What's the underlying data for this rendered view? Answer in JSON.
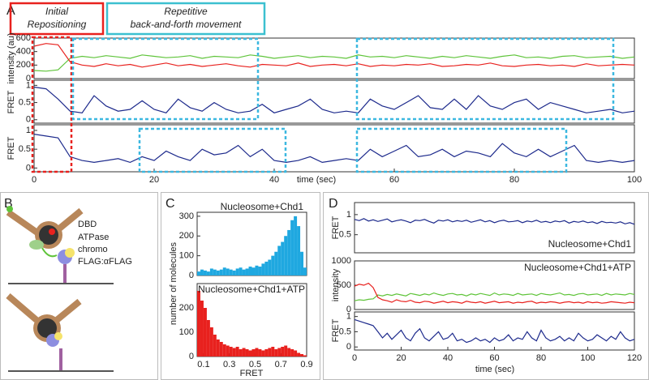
{
  "panel_labels": [
    "A",
    "B",
    "C",
    "D"
  ],
  "annotations": {
    "initial": [
      "Initial",
      "Repositioning"
    ],
    "repetitive": [
      "Repetitive",
      "back-and-forth movement"
    ]
  },
  "diagram_labels": [
    "DBD",
    "ATPase",
    "chromo",
    "FLAG:αFLAG"
  ],
  "shared_ylabel": "number of molecules",
  "chart_data": [
    {
      "type": "line",
      "ylabel": "intensity (au)",
      "xlim": [
        0,
        100
      ],
      "ylim": [
        0,
        600
      ],
      "yticks": [
        0,
        200,
        400,
        600
      ],
      "x": [
        0,
        2,
        4,
        6,
        8,
        10,
        12,
        14,
        16,
        18,
        20,
        22,
        24,
        26,
        28,
        30,
        32,
        34,
        36,
        38,
        40,
        42,
        44,
        46,
        48,
        50,
        52,
        54,
        56,
        58,
        60,
        62,
        64,
        66,
        68,
        70,
        72,
        74,
        76,
        78,
        80,
        82,
        84,
        86,
        88,
        90,
        92,
        94,
        96,
        98,
        100
      ],
      "series": [
        {
          "color": "#5fc43a",
          "values": [
            120,
            110,
            130,
            300,
            330,
            310,
            340,
            320,
            300,
            350,
            330,
            310,
            320,
            340,
            300,
            330,
            320,
            310,
            350,
            330,
            300,
            320,
            340,
            310,
            330,
            320,
            300,
            350,
            320,
            330,
            310,
            340,
            320,
            300,
            330,
            310,
            340,
            320,
            300,
            330,
            350,
            310,
            320,
            300,
            330,
            340,
            310,
            320,
            330,
            300,
            320
          ]
        },
        {
          "color": "#e8211e",
          "values": [
            480,
            520,
            500,
            250,
            200,
            180,
            220,
            190,
            210,
            170,
            200,
            230,
            190,
            210,
            180,
            200,
            220,
            190,
            170,
            210,
            200,
            190,
            230,
            180,
            200,
            210,
            190,
            220,
            180,
            200,
            190,
            210,
            200,
            220,
            180,
            190,
            210,
            200,
            230,
            190,
            180,
            200,
            210,
            190,
            200,
            180,
            220,
            190,
            200,
            210,
            200
          ]
        }
      ]
    },
    {
      "type": "line",
      "ylabel": "FRET",
      "xlim": [
        0,
        100
      ],
      "ylim": [
        -0.1,
        1.15
      ],
      "yticks": [
        0,
        0.5,
        1
      ],
      "x": [
        0,
        2,
        4,
        6,
        8,
        10,
        12,
        14,
        16,
        18,
        20,
        22,
        24,
        26,
        28,
        30,
        32,
        34,
        36,
        38,
        40,
        42,
        44,
        46,
        48,
        50,
        52,
        54,
        56,
        58,
        60,
        62,
        64,
        66,
        68,
        70,
        72,
        74,
        76,
        78,
        80,
        82,
        84,
        86,
        88,
        90,
        92,
        94,
        96,
        98,
        100
      ],
      "series": [
        {
          "color": "#1d2a8c",
          "values": [
            0.95,
            0.9,
            0.6,
            0.25,
            0.2,
            0.7,
            0.4,
            0.25,
            0.3,
            0.55,
            0.3,
            0.2,
            0.6,
            0.35,
            0.25,
            0.5,
            0.3,
            0.2,
            0.25,
            0.45,
            0.2,
            0.3,
            0.4,
            0.6,
            0.3,
            0.2,
            0.25,
            0.2,
            0.6,
            0.4,
            0.3,
            0.5,
            0.7,
            0.35,
            0.3,
            0.6,
            0.3,
            0.7,
            0.4,
            0.3,
            0.5,
            0.6,
            0.3,
            0.5,
            0.4,
            0.3,
            0.2,
            0.25,
            0.3,
            0.2,
            0.25
          ]
        }
      ]
    },
    {
      "type": "line",
      "ylabel": "FRET",
      "xlabel": "time (sec)",
      "xlim": [
        0,
        100
      ],
      "ylim": [
        -0.1,
        1.15
      ],
      "yticks": [
        0,
        0.5,
        1
      ],
      "xticks": [
        0,
        20,
        40,
        60,
        80,
        100
      ],
      "x": [
        0,
        2,
        4,
        6,
        8,
        10,
        12,
        14,
        16,
        18,
        20,
        22,
        24,
        26,
        28,
        30,
        32,
        34,
        36,
        38,
        40,
        42,
        44,
        46,
        48,
        50,
        52,
        54,
        56,
        58,
        60,
        62,
        64,
        66,
        68,
        70,
        72,
        74,
        76,
        78,
        80,
        82,
        84,
        86,
        88,
        90,
        92,
        94,
        96,
        98,
        100
      ],
      "series": [
        {
          "color": "#1d2a8c",
          "values": [
            0.9,
            0.85,
            0.8,
            0.3,
            0.2,
            0.15,
            0.2,
            0.25,
            0.15,
            0.3,
            0.2,
            0.45,
            0.3,
            0.2,
            0.5,
            0.35,
            0.4,
            0.6,
            0.3,
            0.5,
            0.2,
            0.15,
            0.2,
            0.3,
            0.15,
            0.2,
            0.25,
            0.2,
            0.5,
            0.3,
            0.45,
            0.6,
            0.3,
            0.35,
            0.5,
            0.3,
            0.45,
            0.4,
            0.3,
            0.65,
            0.4,
            0.3,
            0.5,
            0.3,
            0.45,
            0.6,
            0.2,
            0.15,
            0.2,
            0.15,
            0.2
          ]
        }
      ]
    },
    {
      "type": "histogram",
      "title": "Nucleosome+Chd1",
      "color": "#1fa8e0",
      "xlim": [
        0.05,
        0.9
      ],
      "ylim": [
        0,
        320
      ],
      "yticks": [
        0,
        100,
        200,
        300
      ],
      "bins": [
        0.05,
        0.075,
        0.1,
        0.125,
        0.15,
        0.175,
        0.2,
        0.225,
        0.25,
        0.275,
        0.3,
        0.325,
        0.35,
        0.375,
        0.4,
        0.425,
        0.45,
        0.475,
        0.5,
        0.525,
        0.55,
        0.575,
        0.6,
        0.625,
        0.65,
        0.675,
        0.7,
        0.725,
        0.75,
        0.775,
        0.8,
        0.825,
        0.85,
        0.875,
        0.9
      ],
      "values": [
        20,
        30,
        25,
        20,
        35,
        30,
        25,
        30,
        40,
        35,
        30,
        25,
        35,
        40,
        30,
        35,
        45,
        40,
        50,
        45,
        60,
        70,
        80,
        100,
        120,
        150,
        170,
        200,
        230,
        280,
        300,
        250,
        120,
        40
      ]
    },
    {
      "type": "histogram",
      "title": "Nucleosome+Chd1+ATP",
      "xlabel": "FRET",
      "color": "#e8211e",
      "xlim": [
        0.05,
        0.9
      ],
      "ylim": [
        0,
        300
      ],
      "yticks": [
        0,
        100,
        200
      ],
      "xticks": [
        0.1,
        0.3,
        0.5,
        0.7,
        0.9
      ],
      "bins": [
        0.05,
        0.075,
        0.1,
        0.125,
        0.15,
        0.175,
        0.2,
        0.225,
        0.25,
        0.275,
        0.3,
        0.325,
        0.35,
        0.375,
        0.4,
        0.425,
        0.45,
        0.475,
        0.5,
        0.525,
        0.55,
        0.575,
        0.6,
        0.625,
        0.65,
        0.675,
        0.7,
        0.725,
        0.75,
        0.775,
        0.8,
        0.825,
        0.85,
        0.875,
        0.9
      ],
      "values": [
        270,
        230,
        200,
        150,
        120,
        90,
        70,
        60,
        50,
        45,
        40,
        35,
        40,
        30,
        35,
        30,
        25,
        30,
        35,
        30,
        25,
        30,
        35,
        40,
        30,
        35,
        40,
        45,
        35,
        30,
        25,
        15,
        10,
        5
      ]
    },
    {
      "type": "line",
      "title": "Nucleosome+Chd1",
      "ylabel": "FRET",
      "xlim": [
        0,
        120
      ],
      "ylim": [
        0.05,
        1.3
      ],
      "yticks": [
        0.5,
        1
      ],
      "x": [
        0,
        2,
        4,
        6,
        8,
        10,
        12,
        14,
        16,
        18,
        20,
        22,
        24,
        26,
        28,
        30,
        32,
        34,
        36,
        38,
        40,
        42,
        44,
        46,
        48,
        50,
        52,
        54,
        56,
        58,
        60,
        62,
        64,
        66,
        68,
        70,
        72,
        74,
        76,
        78,
        80,
        82,
        84,
        86,
        88,
        90,
        92,
        94,
        96,
        98,
        100,
        102,
        104,
        106,
        108,
        110,
        112,
        114,
        116,
        118,
        120
      ],
      "series": [
        {
          "color": "#1d2a8c",
          "values": [
            0.88,
            0.85,
            0.9,
            0.84,
            0.87,
            0.83,
            0.86,
            0.89,
            0.82,
            0.85,
            0.87,
            0.84,
            0.8,
            0.86,
            0.85,
            0.88,
            0.83,
            0.79,
            0.86,
            0.84,
            0.87,
            0.82,
            0.85,
            0.83,
            0.86,
            0.81,
            0.84,
            0.87,
            0.82,
            0.85,
            0.8,
            0.84,
            0.86,
            0.82,
            0.83,
            0.85,
            0.8,
            0.84,
            0.82,
            0.86,
            0.81,
            0.83,
            0.8,
            0.84,
            0.82,
            0.85,
            0.79,
            0.83,
            0.81,
            0.84,
            0.8,
            0.82,
            0.78,
            0.83,
            0.8,
            0.81,
            0.79,
            0.82,
            0.77,
            0.8,
            0.76
          ]
        }
      ]
    },
    {
      "type": "line",
      "title": "Nucleosome+Chd1+ATP",
      "ylabel": "intensity",
      "xlim": [
        0,
        120
      ],
      "ylim": [
        0,
        1000
      ],
      "yticks": [
        0,
        500,
        1000
      ],
      "x": [
        0,
        2,
        4,
        6,
        8,
        10,
        12,
        14,
        16,
        18,
        20,
        22,
        24,
        26,
        28,
        30,
        32,
        34,
        36,
        38,
        40,
        42,
        44,
        46,
        48,
        50,
        52,
        54,
        56,
        58,
        60,
        62,
        64,
        66,
        68,
        70,
        72,
        74,
        76,
        78,
        80,
        82,
        84,
        86,
        88,
        90,
        92,
        94,
        96,
        98,
        100,
        102,
        104,
        106,
        108,
        110,
        112,
        114,
        116,
        118,
        120
      ],
      "series": [
        {
          "color": "#5fc43a",
          "values": [
            180,
            200,
            190,
            210,
            220,
            300,
            280,
            310,
            290,
            320,
            300,
            280,
            330,
            310,
            290,
            320,
            300,
            340,
            310,
            290,
            320,
            330,
            300,
            310,
            280,
            320,
            300,
            330,
            310,
            290,
            340,
            300,
            320,
            310,
            290,
            330,
            300,
            310,
            320,
            290,
            330,
            310,
            300,
            320,
            340,
            300,
            310,
            290,
            320,
            330,
            300,
            310,
            320,
            290,
            330,
            300,
            320,
            310,
            300,
            330,
            310
          ]
        },
        {
          "color": "#e8211e",
          "values": [
            480,
            520,
            500,
            540,
            450,
            250,
            200,
            180,
            150,
            200,
            170,
            160,
            190,
            150,
            140,
            170,
            160,
            130,
            150,
            170,
            140,
            160,
            150,
            130,
            170,
            150,
            140,
            160,
            130,
            150,
            170,
            140,
            150,
            160,
            130,
            150,
            140,
            160,
            170,
            130,
            150,
            140,
            160,
            150,
            130,
            150,
            160,
            140,
            150,
            130,
            160,
            140,
            150,
            130,
            140,
            160,
            150,
            140,
            130,
            150,
            140
          ]
        }
      ]
    },
    {
      "type": "line",
      "ylabel": "FRET",
      "xlabel": "time (sec)",
      "xlim": [
        0,
        120
      ],
      "ylim": [
        -0.1,
        1.15
      ],
      "yticks": [
        0,
        0.5,
        1
      ],
      "xticks": [
        0,
        20,
        40,
        60,
        80,
        100,
        120
      ],
      "x": [
        0,
        2,
        4,
        6,
        8,
        10,
        12,
        14,
        16,
        18,
        20,
        22,
        24,
        26,
        28,
        30,
        32,
        34,
        36,
        38,
        40,
        42,
        44,
        46,
        48,
        50,
        52,
        54,
        56,
        58,
        60,
        62,
        64,
        66,
        68,
        70,
        72,
        74,
        76,
        78,
        80,
        82,
        84,
        86,
        88,
        90,
        92,
        94,
        96,
        98,
        100,
        102,
        104,
        106,
        108,
        110,
        112,
        114,
        116,
        118,
        120
      ],
      "series": [
        {
          "color": "#1d2a8c",
          "values": [
            0.9,
            0.85,
            0.8,
            0.75,
            0.7,
            0.5,
            0.3,
            0.45,
            0.25,
            0.4,
            0.55,
            0.3,
            0.2,
            0.45,
            0.6,
            0.3,
            0.2,
            0.35,
            0.5,
            0.25,
            0.3,
            0.45,
            0.2,
            0.25,
            0.15,
            0.2,
            0.3,
            0.2,
            0.25,
            0.15,
            0.3,
            0.2,
            0.25,
            0.4,
            0.2,
            0.3,
            0.25,
            0.5,
            0.3,
            0.2,
            0.55,
            0.3,
            0.2,
            0.25,
            0.35,
            0.2,
            0.3,
            0.2,
            0.45,
            0.3,
            0.2,
            0.25,
            0.4,
            0.3,
            0.2,
            0.35,
            0.25,
            0.5,
            0.3,
            0.2,
            0.25
          ]
        }
      ]
    }
  ]
}
